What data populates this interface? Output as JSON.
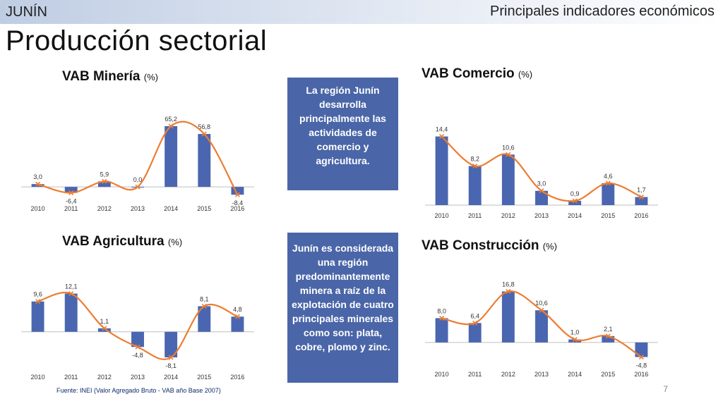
{
  "header": {
    "region": "JUNÍN",
    "subtitle": "Principales indicadores económicos"
  },
  "page_title": "Producción sectorial",
  "callouts": [
    "La región Junín desarrolla principalmente las actividades de comercio y agricultura.",
    "Junín es considerada una región predominantemente minera a raíz de la explotación de cuatro principales minerales como son: plata, cobre, plomo y zinc."
  ],
  "footer": {
    "source": "Fuente: INEI (Valor Agregado Bruto - VAB año Base 2007)",
    "page_number": "7"
  },
  "colors": {
    "bar": "#4a66b0",
    "line": "#ed7d31",
    "callout": "#4a66a8"
  },
  "chart_data": [
    {
      "id": "mineria",
      "type": "bar",
      "title": "VAB Minería",
      "unit": "(%)",
      "categories": [
        "2010",
        "2011",
        "2012",
        "2013",
        "2014",
        "2015",
        "2016"
      ],
      "values": [
        3.0,
        -6.4,
        5.9,
        0.0,
        65.2,
        56.8,
        -8.4
      ],
      "labels": [
        "3,0",
        "-6,4",
        "5,9",
        "0,0",
        "65,2",
        "56,8",
        "-8,4"
      ],
      "overlay": "smoothed line",
      "ylim": [
        -12,
        75
      ],
      "grid": false,
      "legend": "none"
    },
    {
      "id": "comercio",
      "type": "bar",
      "title": "VAB Comercio",
      "unit": "(%)",
      "categories": [
        "2010",
        "2011",
        "2012",
        "2013",
        "2014",
        "2015",
        "2016"
      ],
      "values": [
        14.4,
        8.2,
        10.6,
        3.0,
        0.9,
        4.6,
        1.7
      ],
      "labels": [
        "14,4",
        "8,2",
        "10,6",
        "3,0",
        "0,9",
        "4,6",
        "1,7"
      ],
      "overlay": "smoothed line",
      "ylim": [
        0,
        17
      ],
      "grid": false,
      "legend": "none"
    },
    {
      "id": "agricultura",
      "type": "bar",
      "title": "VAB Agricultura",
      "unit": "(%)",
      "categories": [
        "2010",
        "2011",
        "2012",
        "2013",
        "2014",
        "2015",
        "2016"
      ],
      "values": [
        9.6,
        12.1,
        1.1,
        -4.8,
        -8.1,
        8.1,
        4.8
      ],
      "labels": [
        "9,6",
        "12,1",
        "1,1",
        "-4,8",
        "-8,1",
        "8,1",
        "4,8"
      ],
      "overlay": "smoothed line",
      "ylim": [
        -11,
        14
      ],
      "grid": false,
      "legend": "none"
    },
    {
      "id": "construccion",
      "type": "bar",
      "title": "VAB Construcción",
      "unit": "(%)",
      "categories": [
        "2010",
        "2011",
        "2012",
        "2013",
        "2014",
        "2015",
        "2016"
      ],
      "values": [
        8.0,
        6.4,
        16.8,
        10.6,
        1.0,
        2.1,
        -4.8
      ],
      "labels": [
        "8,0",
        "6,4",
        "16,8",
        "10,6",
        "1,0",
        "2,1",
        "-4,8"
      ],
      "overlay": "smoothed line",
      "ylim": [
        -7,
        19
      ],
      "grid": false,
      "legend": "none"
    }
  ]
}
